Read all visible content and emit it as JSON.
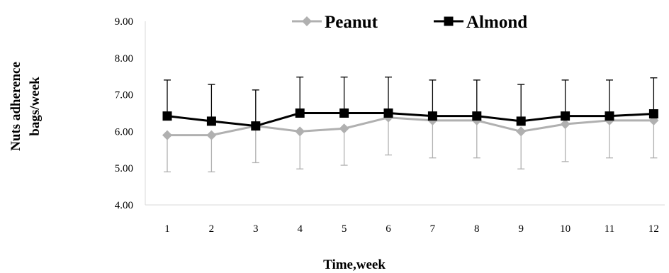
{
  "chart_data": {
    "type": "line",
    "title": "",
    "xlabel": "Time,week",
    "ylabel_lines": [
      "Nuts adherence",
      "bags/week"
    ],
    "categories": [
      "1",
      "2",
      "3",
      "4",
      "5",
      "6",
      "7",
      "8",
      "9",
      "10",
      "11",
      "12"
    ],
    "y_tick_labels": [
      "4.00",
      "5.00",
      "6.00",
      "7.00",
      "8.00",
      "9.00"
    ],
    "ylim": [
      4,
      9
    ],
    "grid": false,
    "legend_position": "top",
    "series": [
      {
        "name": "Peanut",
        "color": "#b0b0b0",
        "marker": "diamond",
        "error_direction": "down",
        "values": [
          5.9,
          5.9,
          6.15,
          6.0,
          6.08,
          6.38,
          6.3,
          6.3,
          6.0,
          6.2,
          6.3,
          6.3
        ],
        "error": [
          1.0,
          1.0,
          1.0,
          1.02,
          1.0,
          1.02,
          1.02,
          1.02,
          1.02,
          1.02,
          1.02,
          1.02
        ]
      },
      {
        "name": "Almond",
        "color": "#000000",
        "marker": "square",
        "error_direction": "up",
        "values": [
          6.42,
          6.28,
          6.15,
          6.5,
          6.5,
          6.5,
          6.42,
          6.42,
          6.28,
          6.42,
          6.42,
          6.48
        ],
        "error": [
          0.98,
          1.0,
          0.98,
          0.98,
          0.98,
          0.98,
          0.98,
          0.98,
          1.0,
          0.98,
          0.98,
          0.98
        ]
      }
    ]
  }
}
